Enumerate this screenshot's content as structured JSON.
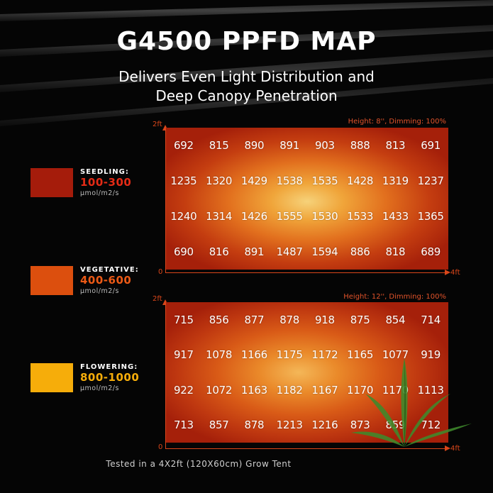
{
  "header": {
    "title": "G4500 PPFD MAP",
    "subtitle_line1": "Delivers Even Light Distribution and",
    "subtitle_line2": "Deep Canopy Penetration"
  },
  "legend": [
    {
      "name": "SEEDLING:",
      "range": "100-300",
      "unit": "μmol/m2/s",
      "color": "#a51c0b",
      "text_color": "#e42b16"
    },
    {
      "name": "VEGETATIVE:",
      "range": "400-600",
      "unit": "μmol/m2/s",
      "color": "#dc4f0e",
      "text_color": "#ec5a16"
    },
    {
      "name": "FLOWERING:",
      "range": "800-1000",
      "unit": "μmol/m2/s",
      "color": "#f6ad0a",
      "text_color": "#f6ad0a"
    }
  ],
  "maps": [
    {
      "caption": "Height: 8'', Dimming: 100%",
      "y_label": "2ft",
      "origin_label": "0",
      "x_label": "4ft",
      "rows": [
        [
          "692",
          "815",
          "890",
          "891",
          "903",
          "888",
          "813",
          "691"
        ],
        [
          "1235",
          "1320",
          "1429",
          "1538",
          "1535",
          "1428",
          "1319",
          "1237"
        ],
        [
          "1240",
          "1314",
          "1426",
          "1555",
          "1530",
          "1533",
          "1433",
          "1365"
        ],
        [
          "690",
          "816",
          "891",
          "1487",
          "1594",
          "886",
          "818",
          "689"
        ]
      ]
    },
    {
      "caption": "Height: 12'', Dimming: 100%",
      "y_label": "2ft",
      "origin_label": "0",
      "x_label": "4ft",
      "rows": [
        [
          "715",
          "856",
          "877",
          "878",
          "918",
          "875",
          "854",
          "714"
        ],
        [
          "917",
          "1078",
          "1166",
          "1175",
          "1172",
          "1165",
          "1077",
          "919"
        ],
        [
          "922",
          "1072",
          "1163",
          "1182",
          "1167",
          "1170",
          "1170",
          "1113"
        ],
        [
          "713",
          "857",
          "878",
          "1213",
          "1216",
          "873",
          "859",
          "712"
        ]
      ]
    }
  ],
  "footer": "Tested in a 4X2ft (120X60cm) Grow Tent",
  "colors": {
    "accent": "#d9461a",
    "background": "#050505"
  }
}
